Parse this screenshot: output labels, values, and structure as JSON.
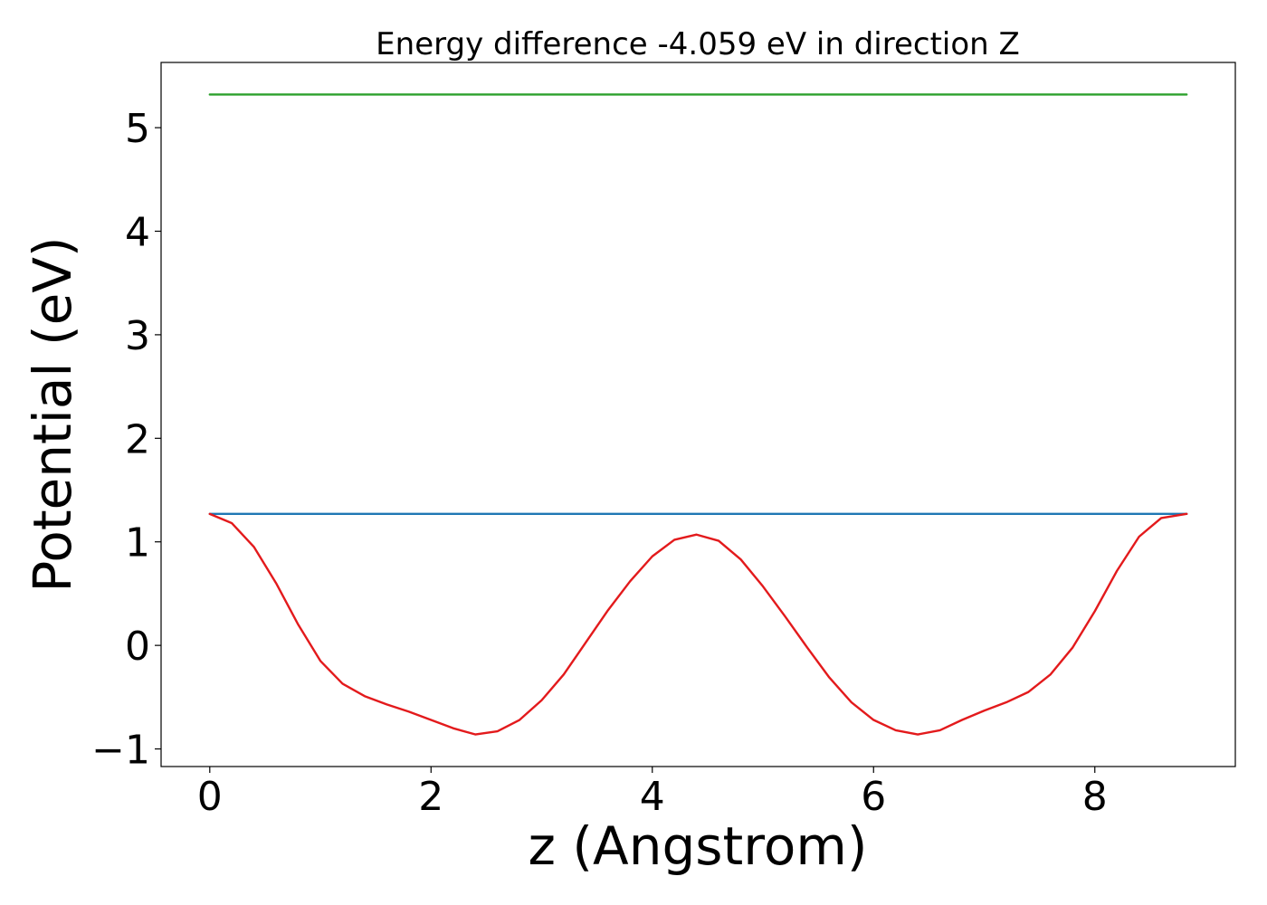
{
  "chart_data": {
    "type": "line",
    "title": "Energy difference -4.059 eV in direction Z",
    "xlabel": "z (Angstrom)",
    "ylabel": "Potential (eV)",
    "xlim": [
      -0.44,
      9.27
    ],
    "ylim": [
      -1.17,
      5.63
    ],
    "xticks": [
      0,
      2,
      4,
      6,
      8
    ],
    "xtick_labels": [
      "0",
      "2",
      "4",
      "6",
      "8"
    ],
    "yticks": [
      -1,
      0,
      1,
      2,
      3,
      4,
      5
    ],
    "ytick_labels": [
      "−1",
      "0",
      "1",
      "2",
      "3",
      "4",
      "5"
    ],
    "grid": false,
    "series": [
      {
        "color": "#1f77b4",
        "x": [
          0,
          8.83
        ],
        "y": [
          1.27,
          1.27
        ]
      },
      {
        "color": "#2ca02c",
        "x": [
          0,
          8.83
        ],
        "y": [
          5.32,
          5.32
        ]
      },
      {
        "color": "#e31a1c",
        "x": [
          0.0,
          0.2,
          0.4,
          0.6,
          0.8,
          1.0,
          1.2,
          1.4,
          1.6,
          1.8,
          2.0,
          2.2,
          2.4,
          2.6,
          2.8,
          3.0,
          3.2,
          3.4,
          3.6,
          3.8,
          4.0,
          4.2,
          4.4,
          4.6,
          4.8,
          5.0,
          5.2,
          5.4,
          5.6,
          5.8,
          6.0,
          6.2,
          6.4,
          6.6,
          6.8,
          7.0,
          7.2,
          7.4,
          7.6,
          7.8,
          8.0,
          8.2,
          8.4,
          8.6,
          8.83
        ],
        "y": [
          1.27,
          1.18,
          0.95,
          0.6,
          0.2,
          -0.15,
          -0.37,
          -0.49,
          -0.57,
          -0.64,
          -0.72,
          -0.8,
          -0.86,
          -0.83,
          -0.72,
          -0.53,
          -0.28,
          0.03,
          0.34,
          0.62,
          0.86,
          1.02,
          1.07,
          1.01,
          0.83,
          0.57,
          0.28,
          -0.02,
          -0.31,
          -0.55,
          -0.72,
          -0.82,
          -0.86,
          -0.82,
          -0.72,
          -0.63,
          -0.55,
          -0.45,
          -0.28,
          -0.02,
          0.33,
          0.72,
          1.05,
          1.23,
          1.27
        ]
      }
    ]
  }
}
